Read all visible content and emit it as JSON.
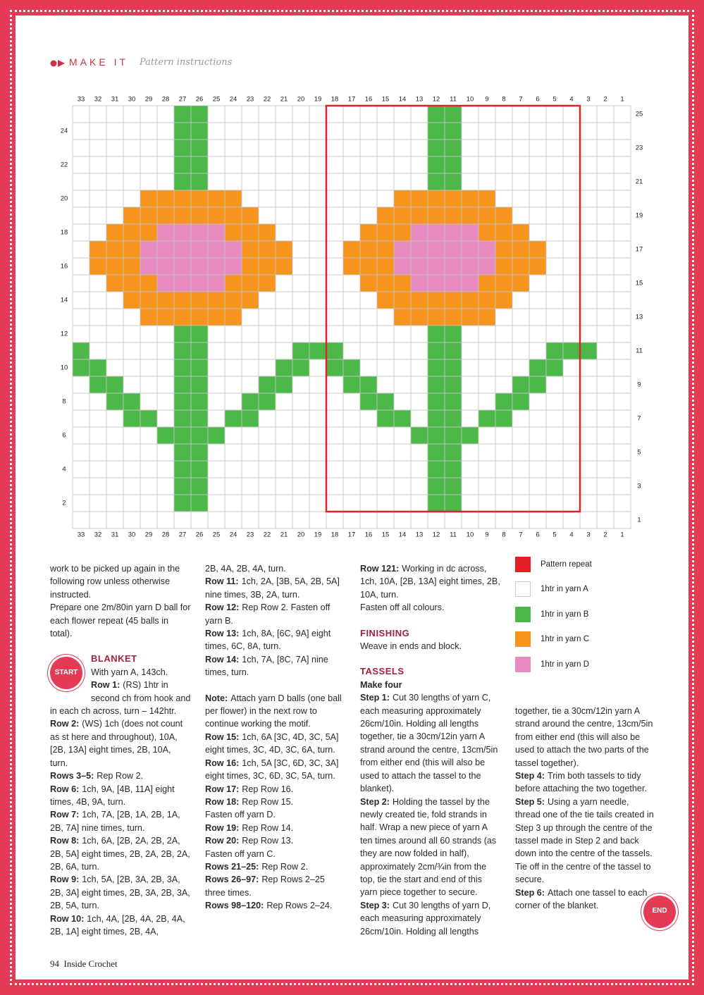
{
  "header": {
    "section": "MAKE IT",
    "subtitle": "Pattern instructions"
  },
  "chart": {
    "columns": [
      33,
      32,
      31,
      30,
      29,
      28,
      27,
      26,
      25,
      24,
      23,
      22,
      21,
      20,
      19,
      18,
      17,
      16,
      15,
      14,
      13,
      12,
      11,
      10,
      9,
      8,
      7,
      6,
      5,
      4,
      3,
      2,
      1
    ],
    "rows_left": [
      24,
      22,
      20,
      18,
      16,
      14,
      12,
      10,
      8,
      6,
      4,
      2
    ],
    "rows_right": [
      25,
      23,
      21,
      19,
      17,
      15,
      13,
      11,
      9,
      7,
      5,
      3,
      1
    ]
  },
  "legend": [
    "Pattern repeat",
    "1htr in yarn A",
    "1htr in yarn B",
    "1htr in yarn C",
    "1htr in yarn D"
  ],
  "columns": [
    [
      {
        "text": "work to be picked up again in the following row unless otherwise instructed."
      },
      {
        "text": "Prepare one 2m/80in yarn D ball for each flower repeat (45 balls in total)."
      },
      {
        "heading": "BLANKET",
        "badge": "START"
      },
      {
        "text": "With yarn A, 143ch."
      },
      {
        "label": "Row 1:",
        "text": "(RS) 1htr in second ch from hook and in each ch across, turn – 142htr."
      },
      {
        "label": "Row 2:",
        "text": "(WS) 1ch (does not count as st here and throughout), 10A, [2B, 13A] eight times, 2B, 10A, turn."
      },
      {
        "label": "Rows 3–5:",
        "text": "Rep Row 2."
      },
      {
        "label": "Row 6:",
        "text": "1ch, 9A, [4B, 11A] eight times, 4B, 9A, turn."
      },
      {
        "label": "Row 7:",
        "text": "1ch, 7A, [2B, 1A, 2B, 1A, 2B, 7A] nine times, turn."
      },
      {
        "label": "Row 8:",
        "text": "1ch, 6A, [2B, 2A, 2B, 2A, 2B, 5A] eight times, 2B, 2A, 2B, 2A, 2B, 6A, turn."
      },
      {
        "label": "Row 9:",
        "text": "1ch, 5A, [2B, 3A, 2B, 3A, 2B, 3A] eight times, 2B, 3A, 2B, 3A, 2B, 5A, turn."
      },
      {
        "label": "Row 10:",
        "text": "1ch, 4A, [2B, 4A, 2B, 4A, 2B, 1A] eight times, 2B, 4A,"
      }
    ],
    [
      {
        "text": "2B, 4A, 2B, 4A, turn."
      },
      {
        "label": "Row 11:",
        "text": "1ch, 2A, [3B, 5A, 2B, 5A] nine times, 3B, 2A, turn."
      },
      {
        "label": "Row 12:",
        "text": "Rep Row 2. Fasten off yarn B."
      },
      {
        "label": "Row 13:",
        "text": "1ch, 8A, [6C, 9A] eight times, 6C, 8A, turn."
      },
      {
        "label": "Row 14:",
        "text": "1ch, 7A, [8C, 7A] nine times, turn."
      },
      {
        "label": "Note:",
        "text": "Attach yarn D balls (one ball per flower) in the next row to continue working the motif.",
        "gap": true
      },
      {
        "label": "Row 15:",
        "text": "1ch, 6A [3C, 4D, 3C, 5A] eight times, 3C, 4D, 3C, 6A, turn."
      },
      {
        "label": "Row 16:",
        "text": "1ch, 5A [3C, 6D, 3C, 3A] eight times, 3C, 6D, 3C, 5A, turn."
      },
      {
        "label": "Row 17:",
        "text": "Rep Row 16."
      },
      {
        "label": "Row 18:",
        "text": "Rep Row 15."
      },
      {
        "text": "Fasten off yarn D."
      },
      {
        "label": "Row 19:",
        "text": "Rep Row 14."
      },
      {
        "label": "Row 20:",
        "text": "Rep Row 13."
      },
      {
        "text": "Fasten off yarn C."
      },
      {
        "label": "Rows 21–25:",
        "text": "Rep Row 2."
      },
      {
        "label": "Rows 26–97:",
        "text": "Rep Rows 2–25 three times."
      },
      {
        "label": "Rows 98–120:",
        "text": "Rep Rows 2–24."
      }
    ],
    [
      {
        "label": "Row 121:",
        "text": "Working in dc across, 1ch, 10A, [2B, 13A] eight times, 2B, 10A, turn."
      },
      {
        "text": "Fasten off all colours."
      },
      {
        "heading": "FINISHING"
      },
      {
        "text": "Weave in ends and block."
      },
      {
        "heading": "TASSELS"
      },
      {
        "subheading": "Make four"
      },
      {
        "label": "Step 1:",
        "text": "Cut 30 lengths of yarn C, each measuring approximately 26cm/10in. Holding all lengths together, tie a 30cm/12in yarn A strand around the centre, 13cm/5in from either end (this will also be used to attach the tassel to the blanket)."
      },
      {
        "label": "Step 2:",
        "text": "Holding the tassel by the newly created tie, fold strands in half. Wrap a new piece of yarn A ten times around all 60 strands (as they are now folded in half), approximately 2cm/¾in from the top, tie the start and end of this yarn piece together to secure."
      },
      {
        "label": "Step 3:",
        "text": "Cut 30 lengths of yarn D, each measuring approximately 26cm/10in. Holding all lengths"
      }
    ],
    [
      {
        "text": "together, tie a 30cm/12in yarn A strand around the centre, 13cm/5in from either end (this will also be used to attach the two parts of the tassel together)."
      },
      {
        "label": "Step 4:",
        "text": "Trim both tassels to tidy before attaching the two together."
      },
      {
        "label": "Step 5:",
        "text": "Using a yarn needle, thread one of the tie tails created in Step 3 up through the centre of the tassel made in Step 2 and back down into the centre of the tassels. Tie off in the centre of the tassel to secure."
      },
      {
        "label": "Step 6:",
        "text": "Attach one tassel to each corner of the blanket.",
        "badge": "END"
      }
    ]
  ],
  "footer": {
    "page": "94",
    "magazine": "Inside Crochet"
  }
}
